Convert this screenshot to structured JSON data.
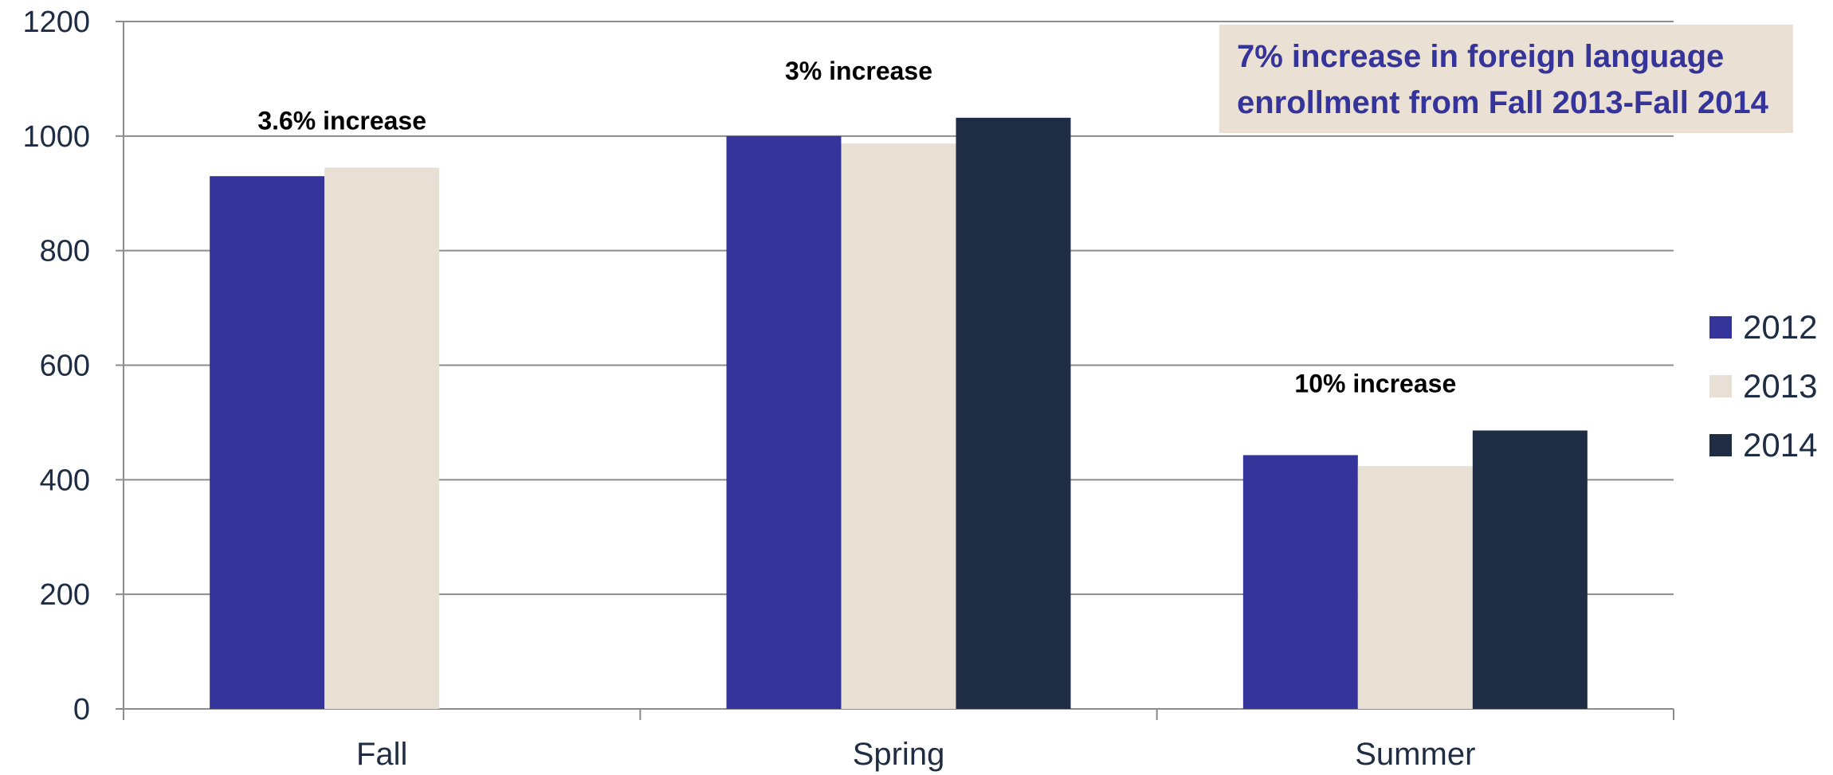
{
  "chart_data": {
    "type": "bar",
    "categories": [
      "Fall",
      "Spring",
      "Summer"
    ],
    "series": [
      {
        "name": "2012",
        "color": "#35349a",
        "values": [
          930,
          1000,
          443
        ]
      },
      {
        "name": "2013",
        "color": "#e9e0d5",
        "values": [
          945,
          987,
          424
        ]
      },
      {
        "name": "2014",
        "color": "#1e2d44",
        "values": [
          null,
          1032,
          486
        ]
      }
    ],
    "ylim": [
      0,
      1200
    ],
    "yticks": [
      0,
      200,
      400,
      600,
      800,
      1000,
      1200
    ],
    "grid": true,
    "legend_position": "right",
    "annotations": [
      {
        "category": "Fall",
        "text": "3.6% increase"
      },
      {
        "category": "Spring",
        "text": "3% increase"
      },
      {
        "category": "Summer",
        "text": "10% increase"
      }
    ],
    "callout": {
      "lines": [
        "7% increase in foreign language",
        "enrollment from Fall 2013-Fall 2014"
      ],
      "background": "#ebe0d4",
      "text_color": "#35349a"
    },
    "title": "",
    "xlabel": "",
    "ylabel": ""
  }
}
